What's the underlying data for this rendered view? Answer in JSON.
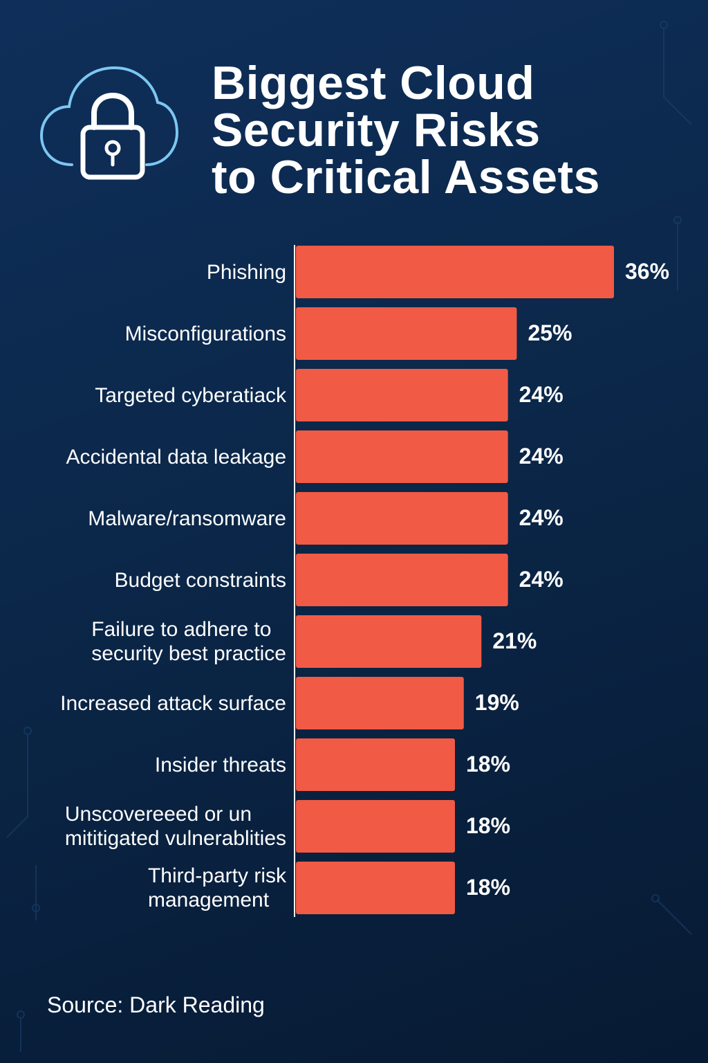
{
  "title_lines": [
    "Biggest Cloud",
    "Security Risks",
    "to Critical Assets"
  ],
  "icon": "cloud-lock-icon",
  "colors": {
    "bar": "#f15a45",
    "accent": "#7cc7f2",
    "axis": "#ffffff"
  },
  "source": "Source: Dark Reading",
  "chart_data": {
    "type": "bar",
    "orientation": "horizontal",
    "title": "Biggest Cloud Security Risks to Critical Assets",
    "categories": [
      "Phishing",
      "Misconfigurations",
      "Targeted cyberatiack",
      "Accidental data leakage",
      "Malware/ransomware",
      "Budget constraints",
      "Failure to adhere to\nsecurity best practice",
      "Increased attack surface",
      "Insider threats",
      "Unscovereeed or un\nmititigated vulnerablities",
      "Third-party risk\nmanagement"
    ],
    "values": [
      36,
      25,
      24,
      24,
      24,
      24,
      21,
      19,
      18,
      18,
      18
    ],
    "value_labels": [
      "36%",
      "25%",
      "24%",
      "24%",
      "24%",
      "24%",
      "21%",
      "19%",
      "18%",
      "18%",
      "18%"
    ],
    "unit": "%",
    "xlim": [
      0,
      36
    ],
    "grid": false,
    "legend": "none"
  }
}
